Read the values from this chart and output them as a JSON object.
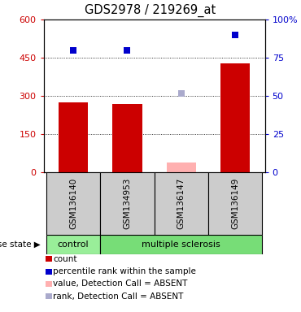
{
  "title": "GDS2978 / 219269_at",
  "samples": [
    "GSM136140",
    "GSM134953",
    "GSM136147",
    "GSM136149"
  ],
  "count_values": [
    275,
    270,
    40,
    430
  ],
  "count_absent": [
    false,
    false,
    true,
    false
  ],
  "percentile_values": [
    80,
    80,
    52,
    90
  ],
  "percentile_absent": [
    false,
    false,
    true,
    false
  ],
  "ylim_left": [
    0,
    600
  ],
  "ylim_right": [
    0,
    100
  ],
  "yticks_left": [
    0,
    150,
    300,
    450,
    600
  ],
  "yticks_right": [
    0,
    25,
    50,
    75,
    100
  ],
  "bar_color_present": "#cc0000",
  "bar_color_absent": "#ffb0b0",
  "dot_color_present": "#0000cc",
  "dot_color_absent": "#aaaacc",
  "groups": [
    {
      "label": "control",
      "samples": [
        0
      ],
      "color": "#99ee99"
    },
    {
      "label": "multiple sclerosis",
      "samples": [
        1,
        2,
        3
      ],
      "color": "#77dd77"
    }
  ],
  "sample_box_color": "#cccccc",
  "legend_items": [
    {
      "label": "count",
      "color": "#cc0000"
    },
    {
      "label": "percentile rank within the sample",
      "color": "#0000cc"
    },
    {
      "label": "value, Detection Call = ABSENT",
      "color": "#ffb0b0"
    },
    {
      "label": "rank, Detection Call = ABSENT",
      "color": "#aaaacc"
    }
  ],
  "fig_width": 3.7,
  "fig_height": 3.84,
  "dpi": 100
}
